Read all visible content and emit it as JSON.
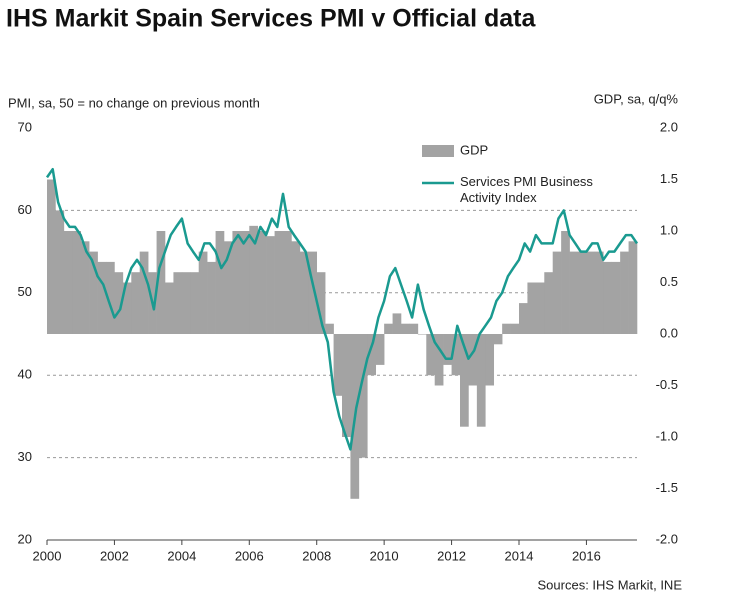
{
  "chart_data": {
    "type": "bar-line",
    "title": "IHS Markit Spain Services PMI v Official data",
    "y_label": "PMI, sa, 50 = no change on previous month",
    "y2_label": "GDP, sa, q/q%",
    "source": "Sources: IHS Markit, INE",
    "xlim": [
      2000,
      2017.5
    ],
    "xticks": [
      2000,
      2002,
      2004,
      2006,
      2008,
      2010,
      2012,
      2014,
      2016
    ],
    "ylim": [
      20,
      70
    ],
    "yticks": [
      20,
      30,
      40,
      50,
      60,
      70
    ],
    "y2lim": [
      -2,
      2
    ],
    "y2ticks": [
      {
        "value": -2,
        "label": "-2.0"
      },
      -1.5,
      {
        "value": -1,
        "label": "-1.0"
      },
      -0.5,
      {
        "value": 0,
        "label": "0.0"
      },
      0.5,
      {
        "value": 1,
        "label": "1.0"
      },
      1.5,
      {
        "value": 2,
        "label": "2.0"
      }
    ],
    "grid": true,
    "legend": "upper right",
    "series": [
      {
        "name": "GDP",
        "type": "bar",
        "axis": "y2",
        "color": "#a3a3a3",
        "x": [
          2000,
          2000.25,
          2000.5,
          2000.75,
          2001,
          2001.25,
          2001.5,
          2001.75,
          2002,
          2002.25,
          2002.5,
          2002.75,
          2003,
          2003.25,
          2003.5,
          2003.75,
          2004,
          2004.25,
          2004.5,
          2004.75,
          2005,
          2005.25,
          2005.5,
          2005.75,
          2006,
          2006.25,
          2006.5,
          2006.75,
          2007,
          2007.25,
          2007.5,
          2007.75,
          2008,
          2008.25,
          2008.5,
          2008.75,
          2009,
          2009.25,
          2009.5,
          2009.75,
          2010,
          2010.25,
          2010.5,
          2010.75,
          2011,
          2011.25,
          2011.5,
          2011.75,
          2012,
          2012.25,
          2012.5,
          2012.75,
          2013,
          2013.25,
          2013.5,
          2013.75,
          2014,
          2014.25,
          2014.5,
          2014.75,
          2015,
          2015.25,
          2015.5,
          2015.75,
          2016,
          2016.25,
          2016.5,
          2016.75,
          2017,
          2017.25
        ],
        "values": [
          1.5,
          1.2,
          1.0,
          1.0,
          0.9,
          0.8,
          0.7,
          0.7,
          0.6,
          0.5,
          0.6,
          0.8,
          0.6,
          1.0,
          0.5,
          0.6,
          0.6,
          0.6,
          0.8,
          0.7,
          1.0,
          0.9,
          1.0,
          1.0,
          1.05,
          1.0,
          0.95,
          1.0,
          1.0,
          0.9,
          0.8,
          0.8,
          0.6,
          0.1,
          -0.6,
          -1.0,
          -1.6,
          -1.2,
          -0.4,
          -0.3,
          0.1,
          0.2,
          0.1,
          0.1,
          0.0,
          -0.4,
          -0.5,
          -0.3,
          -0.4,
          -0.9,
          -0.5,
          -0.9,
          -0.5,
          -0.1,
          0.1,
          0.1,
          0.3,
          0.5,
          0.5,
          0.6,
          0.8,
          1.0,
          0.8,
          0.8,
          0.8,
          0.8,
          0.7,
          0.7,
          0.8,
          0.9
        ]
      },
      {
        "name": "Services PMI Business Activity Index",
        "type": "line",
        "axis": "y",
        "color": "#1a9a90",
        "x": [
          2000,
          2000.17,
          2000.33,
          2000.5,
          2000.67,
          2000.83,
          2001,
          2001.17,
          2001.33,
          2001.5,
          2001.67,
          2001.83,
          2002,
          2002.17,
          2002.33,
          2002.5,
          2002.67,
          2002.83,
          2003,
          2003.17,
          2003.33,
          2003.5,
          2003.67,
          2003.83,
          2004,
          2004.17,
          2004.33,
          2004.5,
          2004.67,
          2004.83,
          2005,
          2005.17,
          2005.33,
          2005.5,
          2005.67,
          2005.83,
          2006,
          2006.17,
          2006.33,
          2006.5,
          2006.67,
          2006.83,
          2007,
          2007.17,
          2007.33,
          2007.5,
          2007.67,
          2007.83,
          2008,
          2008.17,
          2008.33,
          2008.5,
          2008.67,
          2008.83,
          2009,
          2009.17,
          2009.33,
          2009.5,
          2009.67,
          2009.83,
          2010,
          2010.17,
          2010.33,
          2010.5,
          2010.67,
          2010.83,
          2011,
          2011.17,
          2011.33,
          2011.5,
          2011.67,
          2011.83,
          2012,
          2012.17,
          2012.33,
          2012.5,
          2012.67,
          2012.83,
          2013,
          2013.17,
          2013.33,
          2013.5,
          2013.67,
          2013.83,
          2014,
          2014.17,
          2014.33,
          2014.5,
          2014.67,
          2014.83,
          2015,
          2015.17,
          2015.33,
          2015.5,
          2015.67,
          2015.83,
          2016,
          2016.17,
          2016.33,
          2016.5,
          2016.67,
          2016.83,
          2017,
          2017.17,
          2017.33,
          2017.5
        ],
        "values": [
          64,
          65,
          61,
          59,
          58,
          58,
          57,
          55,
          54,
          52,
          51,
          49,
          47,
          48,
          51,
          53,
          54,
          53,
          51,
          48,
          53,
          55,
          57,
          58,
          59,
          56,
          55,
          54,
          56,
          56,
          55,
          53,
          54,
          56,
          57,
          56,
          57,
          56,
          58,
          57,
          59,
          58,
          62,
          58,
          57,
          56,
          55,
          52,
          49,
          46,
          44,
          38,
          35,
          33,
          31,
          36,
          39,
          42,
          44,
          47,
          49,
          52,
          53,
          51,
          49,
          47,
          51,
          48,
          46,
          44,
          43,
          42,
          42,
          46,
          44,
          42,
          43,
          45,
          46,
          47,
          49,
          50,
          52,
          53,
          54,
          56,
          55,
          57,
          56,
          56,
          56,
          59,
          60,
          57,
          56,
          55,
          55,
          56,
          56,
          54,
          55,
          55,
          56,
          57,
          57,
          56
        ]
      }
    ]
  }
}
